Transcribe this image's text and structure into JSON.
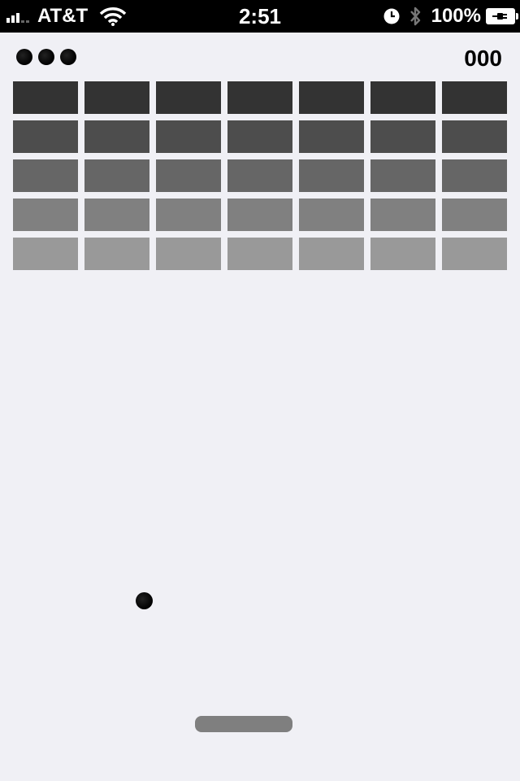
{
  "status_bar": {
    "carrier": "AT&T",
    "time": "2:51",
    "battery_percent": "100%",
    "icons": [
      "signal-icon",
      "wifi-icon",
      "alarm-clock-icon",
      "bluetooth-icon",
      "battery-charging-icon"
    ]
  },
  "hud": {
    "lives_remaining": 3,
    "score": "000"
  },
  "bricks": {
    "columns": 7,
    "rows": [
      {
        "color": "#333333"
      },
      {
        "color": "#4d4d4d"
      },
      {
        "color": "#666666"
      },
      {
        "color": "#808080"
      },
      {
        "color": "#999999"
      }
    ]
  },
  "colors": {
    "background": "#f0f0f5",
    "paddle": "#7f7f7f",
    "ball": "#000000"
  }
}
